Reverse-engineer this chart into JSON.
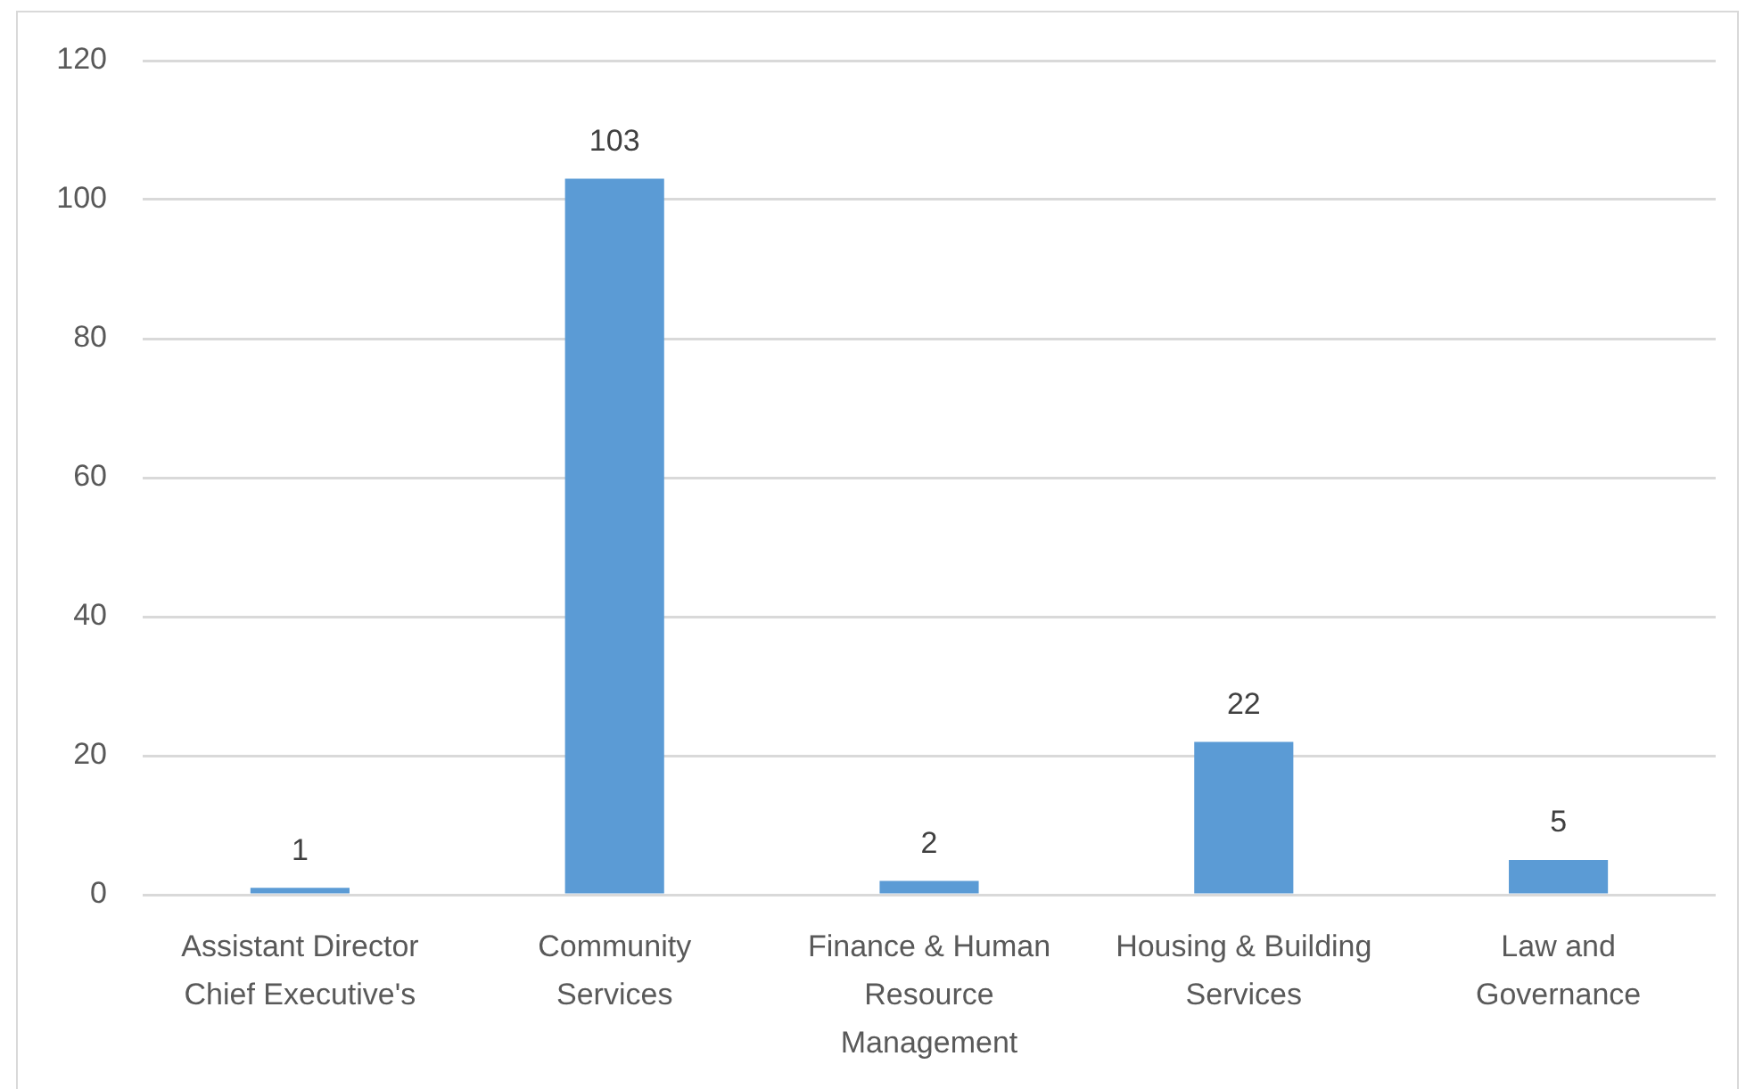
{
  "chart_data": {
    "type": "bar",
    "categories": [
      "Assistant Director Chief Executive's",
      "Community Services",
      "Finance & Human Resource Management",
      "Housing & Building Services",
      "Law and Governance"
    ],
    "values": [
      1,
      103,
      2,
      22,
      5
    ],
    "color": "#5b9bd5",
    "ylim": [
      0,
      120
    ],
    "yticks": [
      0,
      20,
      40,
      60,
      80,
      100,
      120
    ],
    "grid": "y",
    "data_labels": true
  }
}
